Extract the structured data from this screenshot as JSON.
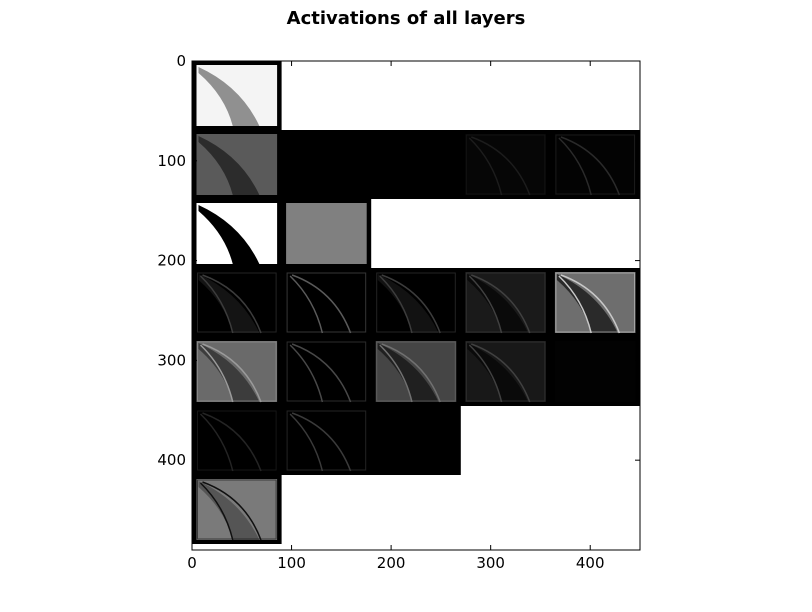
{
  "chart_data": {
    "type": "heatmap",
    "title": "Activations of all layers",
    "xlabel": "",
    "ylabel": "",
    "xlim": [
      0,
      450
    ],
    "ylim": [
      490,
      0
    ],
    "x_ticks": [
      "0",
      "100",
      "200",
      "300",
      "400"
    ],
    "x_tick_values": [
      0,
      100,
      200,
      300,
      400
    ],
    "y_ticks": [
      "0",
      "100",
      "200",
      "300",
      "400"
    ],
    "y_tick_values": [
      0,
      100,
      200,
      300,
      400
    ],
    "grid": false,
    "legend": "none",
    "cell_size": 90,
    "rows": [
      {
        "band_color": "#000000",
        "tiles": [
          {
            "bg": "#f4f4f4",
            "fg": "#909090",
            "stroke": ""
          }
        ]
      },
      {
        "band_color": "#000000",
        "tiles": [
          {
            "bg": "#5a5a5a",
            "fg": "#2c2c2c",
            "stroke": ""
          },
          {
            "bg": "#000000",
            "fg": "",
            "stroke": ""
          },
          {
            "bg": "#000000",
            "fg": "",
            "stroke": ""
          },
          {
            "bg": "#060606",
            "fg": "",
            "stroke": "#1c1c1c"
          },
          {
            "bg": "#030303",
            "fg": "",
            "stroke": "#2a2a2a"
          }
        ]
      },
      {
        "band_color": "#000000",
        "tiles": [
          {
            "bg": "#ffffff",
            "fg": "#000000",
            "stroke": ""
          },
          {
            "bg": "#808080",
            "fg": "",
            "stroke": ""
          }
        ]
      },
      {
        "band_color": "#000000",
        "tiles": [
          {
            "bg": "#000000",
            "fg": "#141414",
            "stroke": "#3c3c3c"
          },
          {
            "bg": "#000000",
            "fg": "",
            "stroke": "#5a5a5a"
          },
          {
            "bg": "#000000",
            "fg": "#121212",
            "stroke": "#3c3c3c"
          },
          {
            "bg": "#1a1a1a",
            "fg": "#0a0a0a",
            "stroke": "#404040"
          },
          {
            "bg": "#6e6e6e",
            "fg": "#2a2a2a",
            "stroke": "#c8c8c8"
          }
        ]
      },
      {
        "band_color": "#000000",
        "tiles": [
          {
            "bg": "#6a6a6a",
            "fg": "#3c3c3c",
            "stroke": "#9a9a9a"
          },
          {
            "bg": "#000000",
            "fg": "",
            "stroke": "#484848"
          },
          {
            "bg": "#454545",
            "fg": "#202020",
            "stroke": "#707070"
          },
          {
            "bg": "#181818",
            "fg": "#0a0a0a",
            "stroke": "#404040"
          },
          {
            "bg": "#020202",
            "fg": "",
            "stroke": ""
          }
        ]
      },
      {
        "band_color": "#000000",
        "tiles": [
          {
            "bg": "#000000",
            "fg": "",
            "stroke": "#242424"
          },
          {
            "bg": "#000000",
            "fg": "",
            "stroke": "#3a3a3a"
          },
          {
            "bg": "#000000",
            "fg": "",
            "stroke": ""
          }
        ]
      },
      {
        "band_color": "#000000",
        "tiles": [
          {
            "bg": "#7a7a7a",
            "fg": "#555555",
            "stroke": "#101010"
          }
        ]
      }
    ]
  }
}
